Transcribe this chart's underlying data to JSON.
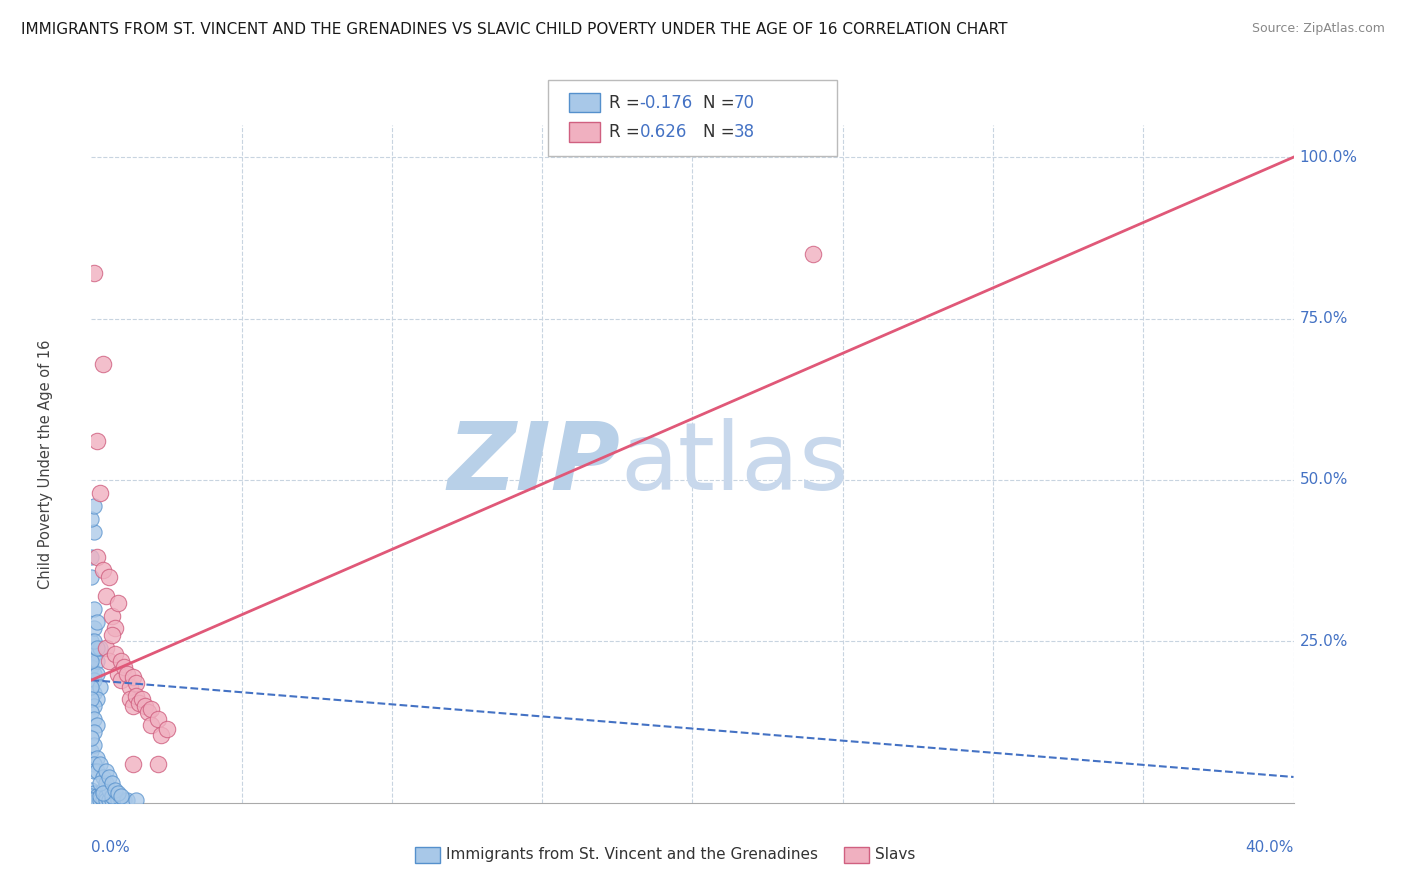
{
  "title": "IMMIGRANTS FROM ST. VINCENT AND THE GRENADINES VS SLAVIC CHILD POVERTY UNDER THE AGE OF 16 CORRELATION CHART",
  "source": "Source: ZipAtlas.com",
  "ylabel_label": "Child Poverty Under the Age of 16",
  "legend_label1": "Immigrants from St. Vincent and the Grenadines",
  "legend_label2": "Slavs",
  "r1": -0.176,
  "n1": 70,
  "r2": 0.626,
  "n2": 38,
  "color_blue": "#a8c8e8",
  "color_blue_edge": "#5590cc",
  "color_pink": "#f0b0c0",
  "color_pink_edge": "#d06080",
  "color_trendline_blue": "#4472c4",
  "color_trendline_pink": "#e05878",
  "watermark_zip_color": "#c8dcf0",
  "watermark_atlas_color": "#c0cce0",
  "background_color": "#ffffff",
  "grid_color": "#c8d4e0",
  "blue_scatter": [
    [
      0.0,
      0.38
    ],
    [
      0.001,
      0.42
    ],
    [
      0.0,
      0.35
    ],
    [
      0.001,
      0.3
    ],
    [
      0.0,
      0.44
    ],
    [
      0.001,
      0.46
    ],
    [
      0.0,
      0.25
    ],
    [
      0.001,
      0.27
    ],
    [
      0.001,
      0.23
    ],
    [
      0.0,
      0.21
    ],
    [
      0.002,
      0.28
    ],
    [
      0.001,
      0.2
    ],
    [
      0.002,
      0.22
    ],
    [
      0.001,
      0.19
    ],
    [
      0.003,
      0.24
    ],
    [
      0.002,
      0.2
    ],
    [
      0.001,
      0.17
    ],
    [
      0.003,
      0.18
    ],
    [
      0.002,
      0.16
    ],
    [
      0.001,
      0.15
    ],
    [
      0.0,
      0.18
    ],
    [
      0.0,
      0.16
    ],
    [
      0.0,
      0.14
    ],
    [
      0.001,
      0.13
    ],
    [
      0.002,
      0.12
    ],
    [
      0.001,
      0.11
    ],
    [
      0.0,
      0.22
    ],
    [
      0.001,
      0.25
    ],
    [
      0.002,
      0.24
    ],
    [
      0.0,
      0.08
    ],
    [
      0.001,
      0.09
    ],
    [
      0.002,
      0.07
    ],
    [
      0.001,
      0.06
    ],
    [
      0.0,
      0.1
    ],
    [
      0.001,
      0.05
    ],
    [
      0.002,
      0.05
    ],
    [
      0.003,
      0.06
    ],
    [
      0.004,
      0.04
    ],
    [
      0.0,
      0.02
    ],
    [
      0.001,
      0.015
    ],
    [
      0.0,
      0.01
    ],
    [
      0.002,
      0.01
    ],
    [
      0.001,
      0.005
    ],
    [
      0.002,
      0.005
    ],
    [
      0.0,
      0.005
    ],
    [
      0.003,
      0.005
    ],
    [
      0.004,
      0.005
    ],
    [
      0.003,
      0.01
    ],
    [
      0.004,
      0.02
    ],
    [
      0.005,
      0.01
    ],
    [
      0.005,
      0.005
    ],
    [
      0.006,
      0.005
    ],
    [
      0.007,
      0.005
    ],
    [
      0.008,
      0.005
    ],
    [
      0.009,
      0.005
    ],
    [
      0.01,
      0.005
    ],
    [
      0.011,
      0.005
    ],
    [
      0.012,
      0.005
    ],
    [
      0.005,
      0.03
    ],
    [
      0.006,
      0.02
    ],
    [
      0.007,
      0.01
    ],
    [
      0.003,
      0.03
    ],
    [
      0.004,
      0.015
    ],
    [
      0.005,
      0.05
    ],
    [
      0.006,
      0.04
    ],
    [
      0.007,
      0.03
    ],
    [
      0.008,
      0.02
    ],
    [
      0.009,
      0.015
    ],
    [
      0.01,
      0.01
    ],
    [
      0.015,
      0.005
    ]
  ],
  "pink_scatter": [
    [
      0.001,
      0.82
    ],
    [
      0.004,
      0.68
    ],
    [
      0.002,
      0.56
    ],
    [
      0.003,
      0.48
    ],
    [
      0.002,
      0.38
    ],
    [
      0.004,
      0.36
    ],
    [
      0.005,
      0.32
    ],
    [
      0.006,
      0.35
    ],
    [
      0.007,
      0.29
    ],
    [
      0.008,
      0.27
    ],
    [
      0.009,
      0.31
    ],
    [
      0.005,
      0.24
    ],
    [
      0.006,
      0.22
    ],
    [
      0.007,
      0.26
    ],
    [
      0.008,
      0.23
    ],
    [
      0.009,
      0.2
    ],
    [
      0.01,
      0.22
    ],
    [
      0.01,
      0.19
    ],
    [
      0.011,
      0.21
    ],
    [
      0.012,
      0.2
    ],
    [
      0.013,
      0.18
    ],
    [
      0.014,
      0.195
    ],
    [
      0.015,
      0.185
    ],
    [
      0.013,
      0.16
    ],
    [
      0.014,
      0.15
    ],
    [
      0.015,
      0.165
    ],
    [
      0.016,
      0.155
    ],
    [
      0.017,
      0.16
    ],
    [
      0.018,
      0.15
    ],
    [
      0.019,
      0.14
    ],
    [
      0.02,
      0.145
    ],
    [
      0.02,
      0.12
    ],
    [
      0.022,
      0.13
    ],
    [
      0.023,
      0.105
    ],
    [
      0.025,
      0.115
    ],
    [
      0.014,
      0.06
    ],
    [
      0.022,
      0.06
    ],
    [
      0.24,
      0.85
    ]
  ],
  "pink_trendline_x": [
    0.0,
    0.4
  ],
  "pink_trendline_y": [
    0.19,
    1.0
  ],
  "blue_trendline_x": [
    0.0,
    0.4
  ],
  "blue_trendline_y": [
    0.19,
    0.04
  ],
  "xlim": [
    0.0,
    0.4
  ],
  "ylim": [
    0.0,
    1.05
  ],
  "xticks": [
    0.0,
    0.05,
    0.1,
    0.15,
    0.2,
    0.25,
    0.3,
    0.35,
    0.4
  ],
  "yticks": [
    0.0,
    0.25,
    0.5,
    0.75,
    1.0
  ],
  "ytick_labels": [
    "",
    "25.0%",
    "50.0%",
    "75.0%",
    "100.0%"
  ]
}
